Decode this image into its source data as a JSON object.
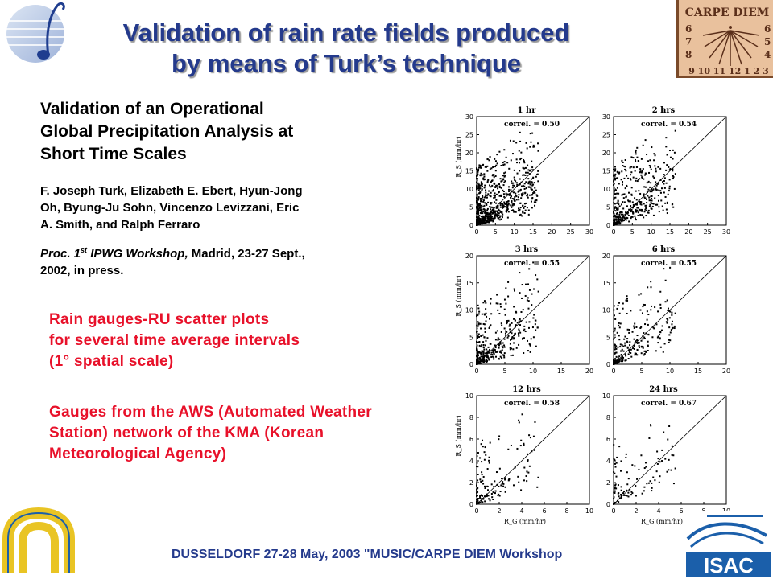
{
  "slide": {
    "title_line1": "Validation of rain rate fields produced",
    "title_line2": "by means of Turk’s technique",
    "paper": {
      "title_lines": [
        "Validation of an Operational",
        "Global Precipitation Analysis at",
        "Short Time Scales"
      ],
      "authors_lines": [
        "F. Joseph Turk, Elizabeth E. Ebert, Hyun-Jong",
        "Oh, Byung-Ju Sohn, Vincenzo Levizzani, Eric",
        "A. Smith, and Ralph Ferraro"
      ],
      "proc_pre": "Proc. 1",
      "proc_sup": "st",
      "proc_italic": " IPWG Workshop,",
      "proc_rest": " Madrid, 23-27 Sept.,",
      "proc_line2": "2002, in press."
    },
    "desc_lines": [
      "Rain gauges-RU scatter plots",
      "for several time average intervals",
      "(1° spatial scale)"
    ],
    "gauge_lines": [
      "Gauges from the AWS (Automated Weather",
      "Station) network of the KMA (Korean",
      "Meteorological Agency)"
    ],
    "footer": "DUSSELDORF 27-28 May, 2003  \"MUSIC/CARPE DIEM Workshop",
    "carpe_diem": {
      "text": "CARPE DIEM",
      "numbers_left": [
        "6",
        "7",
        "8"
      ],
      "numbers_right": [
        "6",
        "5",
        "4"
      ],
      "numbers_bottom": "9 10 11 12 1 2 3"
    },
    "isac_logo": {
      "text": "ISAC"
    },
    "colors": {
      "title": "#243a8c",
      "red_text": "#e8112a",
      "logo_yellow": "#e9c424",
      "isac_blue": "#1b5faa"
    }
  },
  "chart_data": [
    {
      "type": "scatter",
      "title": "1 hr",
      "annotation": "correl. = 0.50",
      "ylabel": "R_S (mm/hr)",
      "xlim": [
        0,
        30
      ],
      "ylim": [
        0,
        30
      ],
      "xticks": [
        "0",
        "5",
        "10",
        "15",
        "20",
        "25",
        "30"
      ],
      "yticks": [
        "0",
        "5",
        "10",
        "15",
        "20",
        "25",
        "30"
      ],
      "diagonal": true,
      "correlation": 0.5
    },
    {
      "type": "scatter",
      "title": "2 hrs",
      "annotation": "correl. = 0.54",
      "xlim": [
        0,
        30
      ],
      "ylim": [
        0,
        30
      ],
      "xticks": [
        "0",
        "5",
        "10",
        "15",
        "20",
        "25",
        "30"
      ],
      "yticks": [
        "0",
        "5",
        "10",
        "15",
        "20",
        "25",
        "30"
      ],
      "diagonal": true,
      "correlation": 0.54
    },
    {
      "type": "scatter",
      "title": "3 hrs",
      "annotation": "correl. = 0.55",
      "ylabel": "R_S (mm/hr)",
      "xlim": [
        0,
        20
      ],
      "ylim": [
        0,
        20
      ],
      "xticks": [
        "0",
        "5",
        "10",
        "15",
        "20"
      ],
      "yticks": [
        "0",
        "5",
        "10",
        "15",
        "20"
      ],
      "diagonal": true,
      "correlation": 0.55
    },
    {
      "type": "scatter",
      "title": "6 hrs",
      "annotation": "correl. = 0.55",
      "xlim": [
        0,
        20
      ],
      "ylim": [
        0,
        20
      ],
      "xticks": [
        "0",
        "5",
        "10",
        "15",
        "20"
      ],
      "yticks": [
        "0",
        "5",
        "10",
        "15",
        "20"
      ],
      "diagonal": true,
      "correlation": 0.55
    },
    {
      "type": "scatter",
      "title": "12 hrs",
      "annotation": "correl. = 0.58",
      "ylabel": "R_S (mm/hr)",
      "xlabel": "R_G (mm/hr)",
      "xlim": [
        0,
        10
      ],
      "ylim": [
        0,
        10
      ],
      "xticks": [
        "0",
        "2",
        "4",
        "6",
        "8",
        "10"
      ],
      "yticks": [
        "0",
        "2",
        "4",
        "6",
        "8",
        "10"
      ],
      "diagonal": true,
      "correlation": 0.58
    },
    {
      "type": "scatter",
      "title": "24 hrs",
      "annotation": "correl. = 0.67",
      "xlabel": "R_G (mm/hr)",
      "xlim": [
        0,
        10
      ],
      "ylim": [
        0,
        10
      ],
      "xticks": [
        "0",
        "2",
        "4",
        "6",
        "8",
        "10"
      ],
      "yticks": [
        "0",
        "2",
        "4",
        "6",
        "8",
        "10"
      ],
      "diagonal": true,
      "correlation": 0.67
    }
  ]
}
